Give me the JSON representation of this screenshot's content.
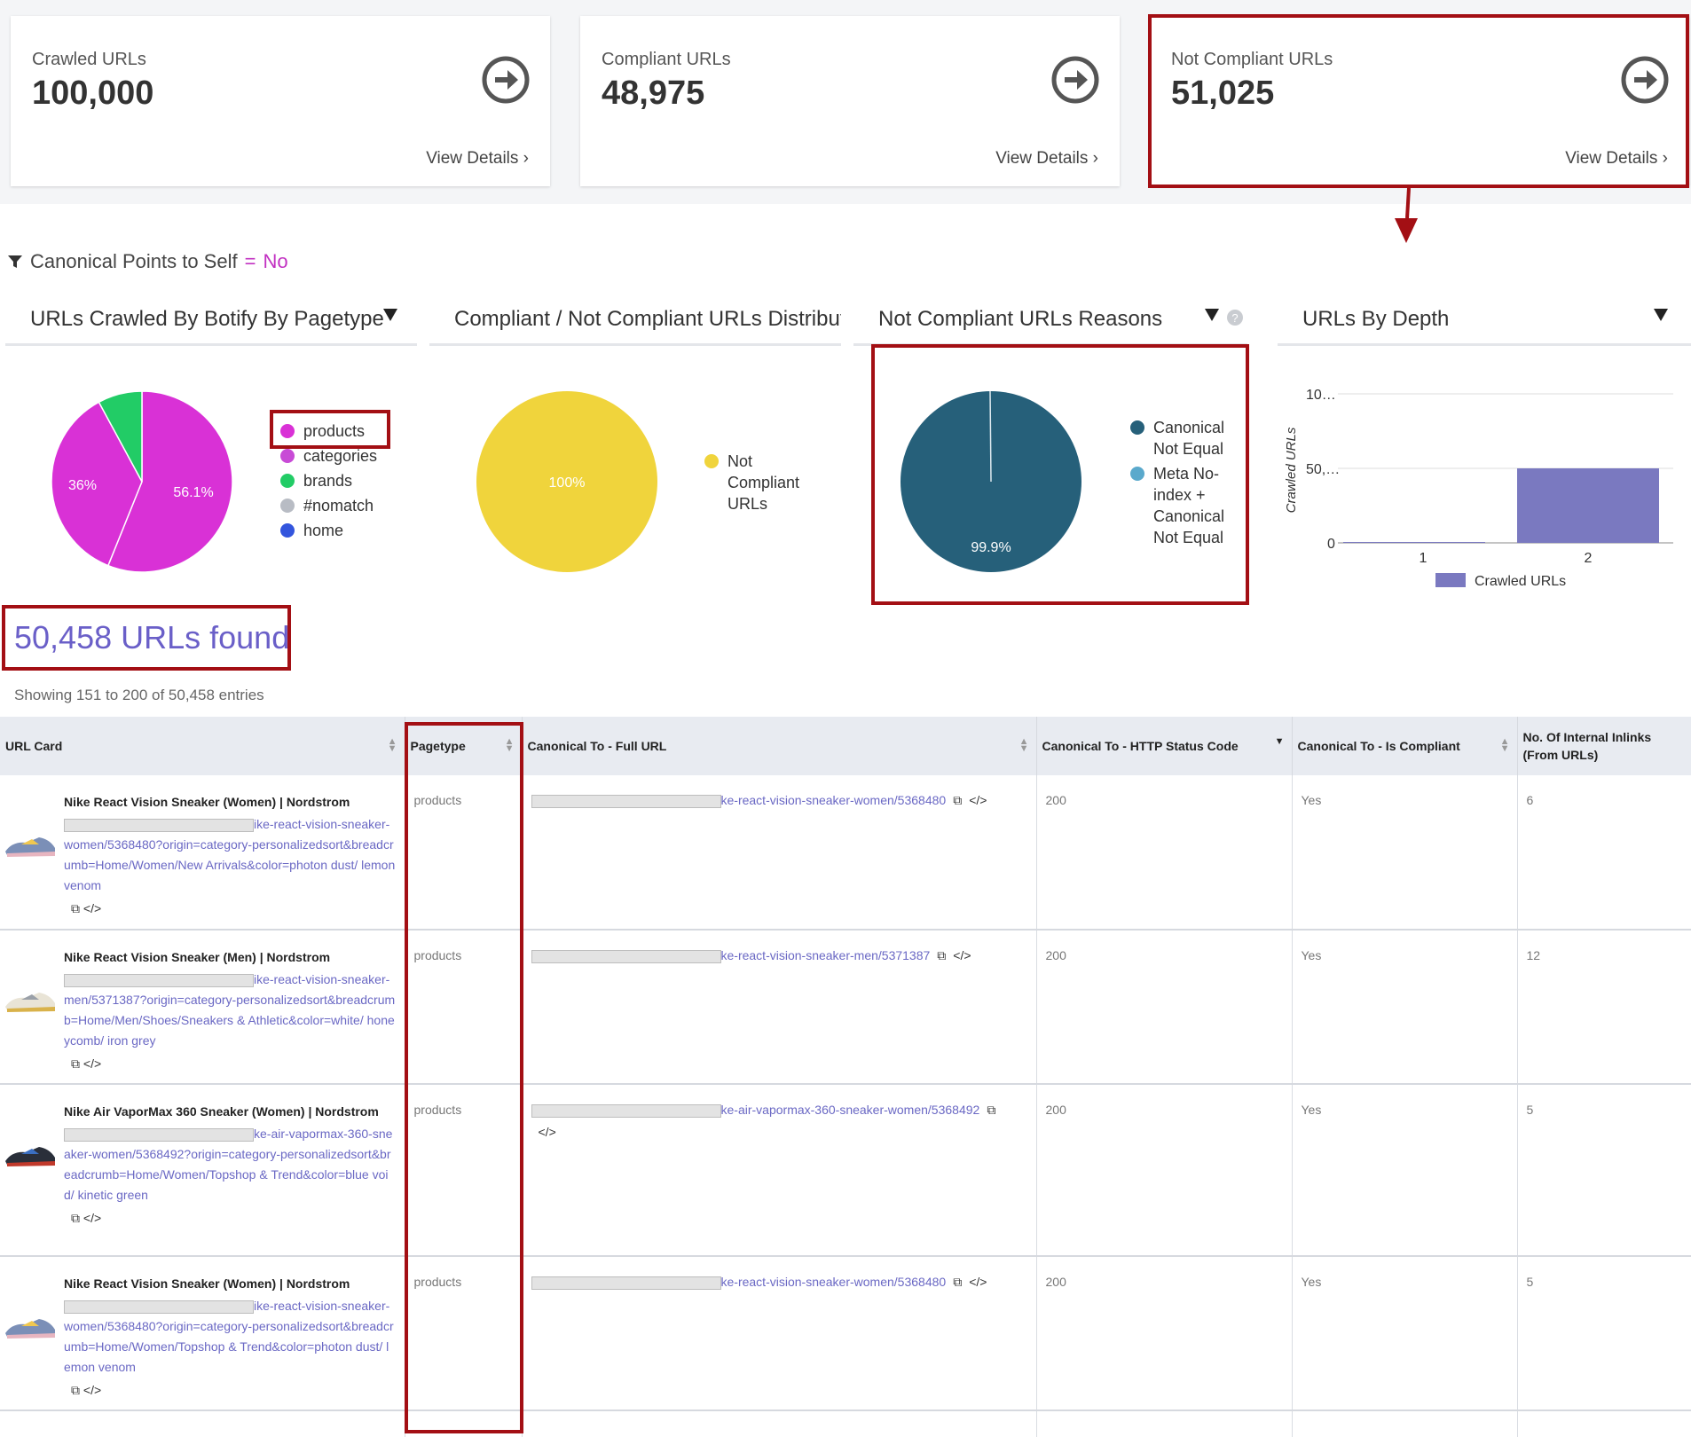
{
  "cards": [
    {
      "title": "Crawled URLs",
      "value": "100,000",
      "link": "View Details ›"
    },
    {
      "title": "Compliant URLs",
      "value": "48,975",
      "link": "View Details ›"
    },
    {
      "title": "Not Compliant URLs",
      "value": "51,025",
      "link": "View Details ›"
    }
  ],
  "filter": {
    "label": "Canonical Points to Self",
    "op": " = ",
    "value": "No"
  },
  "panels": {
    "pagetype": {
      "title": "URLs Crawled By Botify By Pagetype",
      "slice_labels": [
        "56.1%",
        "36%"
      ],
      "legend": [
        "products",
        "categories",
        "brands",
        "#nomatch",
        "home"
      ],
      "legend_colors": [
        "#d931d6",
        "#c84bd6",
        "#22cc66",
        "#b8bcc4",
        "#3355dd"
      ]
    },
    "compliance": {
      "title": "Compliant / Not Compliant URLs Distribution",
      "slice_label": "100%",
      "legend": [
        "Not",
        "Compliant",
        "URLs"
      ],
      "color": "#f0d43c"
    },
    "reasons": {
      "title": "Not Compliant URLs Reasons",
      "slice_label": "99.9%",
      "legend1": [
        "Canonical",
        "Not Equal"
      ],
      "legend2": [
        "Meta No-",
        "index +",
        "Canonical",
        "Not Equal"
      ],
      "colors": [
        "#26607a",
        "#5aa9cc"
      ]
    },
    "depth": {
      "title": "URLs By Depth",
      "ylabel": "Crawled URLs",
      "yticks": [
        "10…",
        "50,…",
        "0"
      ],
      "xticks": [
        "1",
        "2"
      ],
      "legend": "Crawled URLs",
      "color": "#7a79c0"
    }
  },
  "chart_data": [
    {
      "type": "pie",
      "title": "URLs Crawled By Botify By Pagetype",
      "categories": [
        "products",
        "categories",
        "brands",
        "#nomatch",
        "home"
      ],
      "values": [
        56.1,
        36,
        7.9,
        0,
        0
      ]
    },
    {
      "type": "pie",
      "title": "Compliant / Not Compliant URLs Distribution",
      "categories": [
        "Not Compliant URLs"
      ],
      "values": [
        100
      ]
    },
    {
      "type": "pie",
      "title": "Not Compliant URLs Reasons",
      "categories": [
        "Canonical Not Equal",
        "Meta No-index + Canonical Not Equal"
      ],
      "values": [
        99.9,
        0.1
      ]
    },
    {
      "type": "bar",
      "title": "URLs By Depth",
      "ylabel": "Crawled URLs",
      "categories": [
        "1",
        "2"
      ],
      "series": [
        {
          "name": "Crawled URLs",
          "values": [
            100,
            50000
          ]
        }
      ]
    }
  ],
  "results": {
    "found": "50,458 URLs found",
    "showing": "Showing 151 to 200 of 50,458 entries"
  },
  "table": {
    "headers": [
      "URL Card",
      "Pagetype",
      "Canonical To - Full URL",
      "Canonical To - HTTP Status Code",
      "Canonical To - Is Compliant",
      "No. Of Internal Inlinks (From URLs)"
    ],
    "rows": [
      {
        "title": "Nike React Vision Sneaker (Women) | Nordstrom",
        "url": "ike-react-vision-sneaker-women/5368480?origin=category-personalizedsort&breadcrumb=Home/Women/New Arrivals&color=photon dust/ lemon venom",
        "pagetype": "products",
        "canonical": "ke-react-vision-sneaker-women/5368480",
        "status": "200",
        "compliant": "Yes",
        "inlinks": "6"
      },
      {
        "title": "Nike React Vision Sneaker (Men) | Nordstrom",
        "url": "ike-react-vision-sneaker-men/5371387?origin=category-personalizedsort&breadcrumb=Home/Men/Shoes/Sneakers & Athletic&color=white/ honeycomb/ iron grey",
        "pagetype": "products",
        "canonical": "ke-react-vision-sneaker-men/5371387",
        "status": "200",
        "compliant": "Yes",
        "inlinks": "12"
      },
      {
        "title": "Nike Air VaporMax 360 Sneaker (Women) | Nordstrom",
        "url": "ke-air-vapormax-360-sneaker-women/5368492?origin=category-personalizedsort&breadcrumb=Home/Women/Topshop & Trend&color=blue void/ kinetic green",
        "pagetype": "products",
        "canonical": "ke-air-vapormax-360-sneaker-women/5368492",
        "status": "200",
        "compliant": "Yes",
        "inlinks": "5"
      },
      {
        "title": "Nike React Vision Sneaker (Women) | Nordstrom",
        "url": "ike-react-vision-sneaker-women/5368480?origin=category-personalizedsort&breadcrumb=Home/Women/Topshop & Trend&color=photon dust/ lemon venom",
        "pagetype": "products",
        "canonical": "ke-react-vision-sneaker-women/5368480",
        "status": "200",
        "compliant": "Yes",
        "inlinks": "5"
      }
    ]
  }
}
